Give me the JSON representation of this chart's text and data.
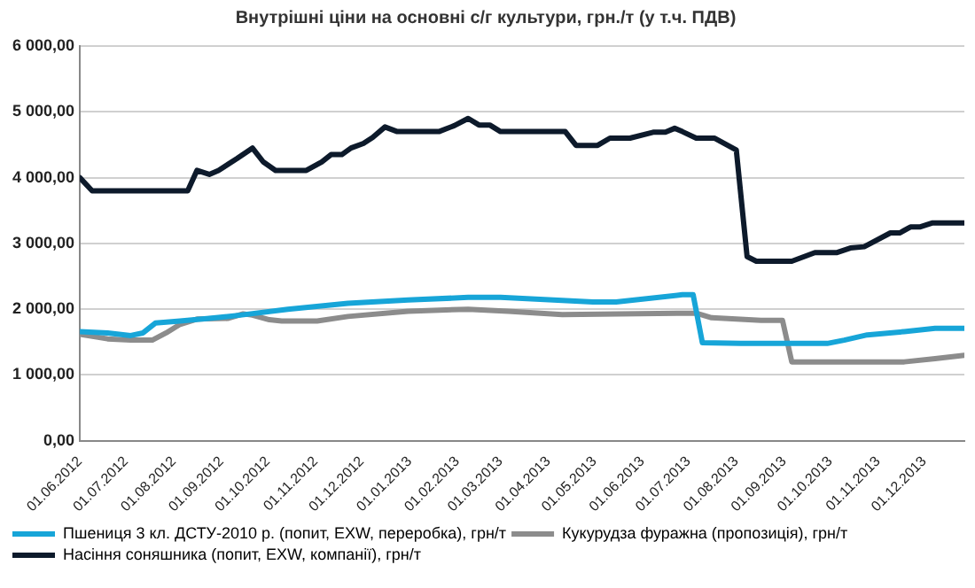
{
  "chart_data": {
    "type": "line",
    "title": "Внутрішні ціни на основні с/г культури, грн./т (у т.ч. ПДВ)",
    "series": [
      {
        "name": "Пшениця 3 кл. ДСТУ-2010 р. (попит, EXW, переробка), грн/т",
        "color": "#17a5d8",
        "x": [
          "2012-06-01",
          "2012-06-19",
          "2012-07-04",
          "2012-07-12",
          "2012-07-20",
          "2012-08-05",
          "2012-08-24",
          "2012-09-13",
          "2012-10-14",
          "2012-11-22",
          "2012-12-31",
          "2013-02-08",
          "2013-03-01",
          "2013-04-30",
          "2013-05-15",
          "2013-06-27",
          "2013-07-04",
          "2013-07-10",
          "2013-08-04",
          "2013-09-29",
          "2013-10-10",
          "2013-10-25",
          "2013-11-18",
          "2013-12-08",
          "2013-12-27"
        ],
        "values": [
          1660,
          1640,
          1600,
          1640,
          1790,
          1820,
          1860,
          1910,
          2000,
          2090,
          2140,
          2180,
          2180,
          2110,
          2110,
          2220,
          2220,
          1490,
          1480,
          1480,
          1530,
          1610,
          1660,
          1710,
          1710
        ]
      },
      {
        "name": "Кукурудза фуражна (пропозиція), грн/т",
        "color": "#8c8c8c",
        "x": [
          "2012-06-01",
          "2012-06-19",
          "2012-07-04",
          "2012-07-18",
          "2012-07-27",
          "2012-08-05",
          "2012-08-16",
          "2012-09-05",
          "2012-09-15",
          "2012-09-21",
          "2012-10-02",
          "2012-10-10",
          "2012-11-02",
          "2012-11-22",
          "2012-12-31",
          "2013-02-08",
          "2013-03-06",
          "2013-04-10",
          "2013-06-27",
          "2013-07-06",
          "2013-07-16",
          "2013-08-17",
          "2013-08-31",
          "2013-09-06",
          "2013-11-18",
          "2013-12-08",
          "2013-12-27"
        ],
        "values": [
          1620,
          1550,
          1530,
          1530,
          1640,
          1770,
          1850,
          1860,
          1930,
          1910,
          1840,
          1820,
          1820,
          1890,
          1970,
          2000,
          1970,
          1920,
          1940,
          1940,
          1870,
          1830,
          1830,
          1200,
          1200,
          1250,
          1300
        ]
      },
      {
        "name": "Насіння соняшника (попит, EXW, компанії), грн/т",
        "color": "#0d1a2b",
        "x": [
          "2012-06-01",
          "2012-06-09",
          "2012-08-10",
          "2012-08-16",
          "2012-08-24",
          "2012-08-30",
          "2012-09-11",
          "2012-09-21",
          "2012-09-28",
          "2012-10-06",
          "2012-10-26",
          "2012-11-05",
          "2012-11-11",
          "2012-11-18",
          "2012-11-24",
          "2012-12-02",
          "2012-12-08",
          "2012-12-16",
          "2012-12-24",
          "2013-01-20",
          "2013-01-30",
          "2013-02-08",
          "2013-02-15",
          "2013-02-22",
          "2013-03-01",
          "2013-04-12",
          "2013-04-19",
          "2013-05-03",
          "2013-05-11",
          "2013-05-24",
          "2013-06-08",
          "2013-06-16",
          "2013-06-22",
          "2013-06-27",
          "2013-07-06",
          "2013-07-18",
          "2013-08-01",
          "2013-08-08",
          "2013-08-14",
          "2013-09-06",
          "2013-09-21",
          "2013-10-05",
          "2013-10-14",
          "2013-10-23",
          "2013-11-09",
          "2013-11-15",
          "2013-11-22",
          "2013-11-28",
          "2013-12-06",
          "2013-12-27"
        ],
        "values": [
          4000,
          3800,
          3800,
          4110,
          4050,
          4110,
          4290,
          4450,
          4240,
          4110,
          4110,
          4240,
          4350,
          4350,
          4450,
          4520,
          4610,
          4770,
          4700,
          4700,
          4790,
          4900,
          4800,
          4800,
          4700,
          4700,
          4490,
          4490,
          4600,
          4600,
          4690,
          4690,
          4750,
          4700,
          4600,
          4600,
          4420,
          2800,
          2730,
          2730,
          2860,
          2860,
          2930,
          2950,
          3160,
          3160,
          3250,
          3250,
          3310,
          3310
        ]
      }
    ],
    "xlim": [
      "2012-06-01",
      "2013-12-27"
    ],
    "xticks": [
      {
        "value": "2012-06-01",
        "label": "01.06.2012"
      },
      {
        "value": "2012-07-01",
        "label": "01.07.2012"
      },
      {
        "value": "2012-08-01",
        "label": "01.08.2012"
      },
      {
        "value": "2012-09-01",
        "label": "01.09.2012"
      },
      {
        "value": "2012-10-01",
        "label": "01.10.2012"
      },
      {
        "value": "2012-11-01",
        "label": "01.11.2012"
      },
      {
        "value": "2012-12-01",
        "label": "01.12.2012"
      },
      {
        "value": "2013-01-01",
        "label": "01.01.2013"
      },
      {
        "value": "2013-02-01",
        "label": "01.02.2013"
      },
      {
        "value": "2013-03-01",
        "label": "01.03.2013"
      },
      {
        "value": "2013-04-01",
        "label": "01.04.2013"
      },
      {
        "value": "2013-05-01",
        "label": "01.05.2013"
      },
      {
        "value": "2013-06-01",
        "label": "01.06.2013"
      },
      {
        "value": "2013-07-01",
        "label": "01.07.2013"
      },
      {
        "value": "2013-08-01",
        "label": "01.08.2013"
      },
      {
        "value": "2013-09-01",
        "label": "01.09.2013"
      },
      {
        "value": "2013-10-01",
        "label": "01.10.2013"
      },
      {
        "value": "2013-11-01",
        "label": "01.11.2013"
      },
      {
        "value": "2013-12-01",
        "label": "01.12.2013"
      }
    ],
    "ylim": [
      0,
      6000
    ],
    "yticks": [
      {
        "value": 0,
        "label": "0,00"
      },
      {
        "value": 1000,
        "label": "1 000,00"
      },
      {
        "value": 2000,
        "label": "2 000,00"
      },
      {
        "value": 3000,
        "label": "3 000,00"
      },
      {
        "value": 4000,
        "label": "4 000,00"
      },
      {
        "value": 5000,
        "label": "5 000,00"
      },
      {
        "value": 6000,
        "label": "6 000,00"
      }
    ],
    "grid": "y",
    "legend": "bottom",
    "marker": "none",
    "line_style": "solid"
  }
}
